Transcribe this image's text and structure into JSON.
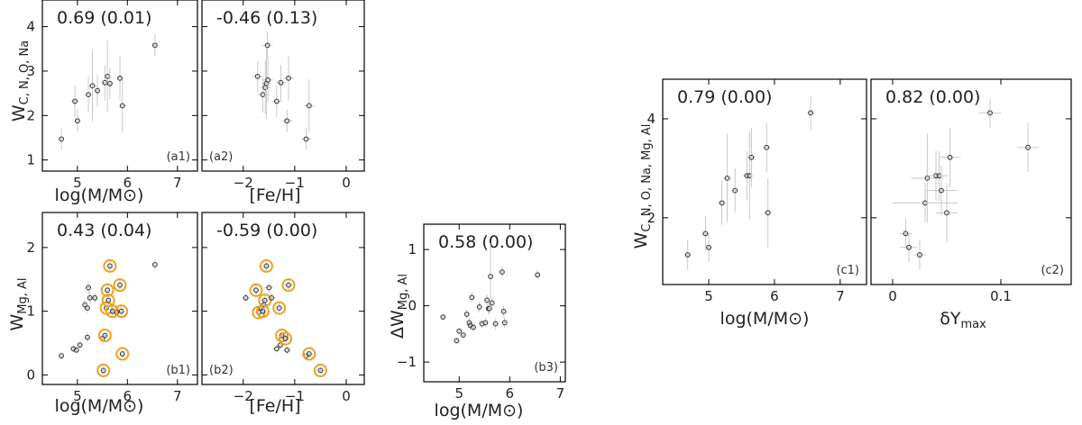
{
  "chart_data": [
    {
      "id": "a1",
      "type": "scatter",
      "xlim": [
        4.3,
        7.4
      ],
      "ylim": [
        0.75,
        4.6
      ],
      "xticks": [
        5,
        6,
        7
      ],
      "yticks": [
        1,
        2,
        3,
        4
      ],
      "annotation": "0.69  (0.01)",
      "panel_label": "(a1)",
      "xlabel": "log(M/M⊙)",
      "ylabel": "WC, N, O, Na",
      "points": [
        {
          "x": 4.68,
          "y": 1.47,
          "ex": 0.05,
          "ey": 0.25
        },
        {
          "x": 4.95,
          "y": 2.32,
          "ex": 0.08,
          "ey": 0.35
        },
        {
          "x": 5.0,
          "y": 1.88,
          "ex": 0.06,
          "ey": 0.25
        },
        {
          "x": 5.22,
          "y": 2.47,
          "ex": 0.06,
          "ey": 0.4
        },
        {
          "x": 5.3,
          "y": 2.67,
          "ex": 0.08,
          "ey": 0.8
        },
        {
          "x": 5.4,
          "y": 2.56,
          "ex": 0.06,
          "ey": 0.35
        },
        {
          "x": 5.55,
          "y": 2.74,
          "ex": 0.07,
          "ey": 0.4
        },
        {
          "x": 5.6,
          "y": 2.88,
          "ex": 0.06,
          "ey": 0.8
        },
        {
          "x": 5.65,
          "y": 2.72,
          "ex": 0.06,
          "ey": 0.35
        },
        {
          "x": 5.85,
          "y": 2.84,
          "ex": 0.06,
          "ey": 0.5
        },
        {
          "x": 5.9,
          "y": 2.22,
          "ex": 0.07,
          "ey": 0.6
        },
        {
          "x": 6.55,
          "y": 3.58,
          "ex": 0.05,
          "ey": 0.25
        }
      ]
    },
    {
      "id": "a2",
      "type": "scatter",
      "xlim": [
        -2.8,
        0.35
      ],
      "ylim": [
        0.75,
        4.6
      ],
      "xticks": [
        -2,
        -1,
        0
      ],
      "yticks": [
        1,
        2,
        3,
        4
      ],
      "annotation": "-0.46  (0.13)",
      "panel_label": "(a2)",
      "xlabel": "[Fe/H]",
      "ylabel": "",
      "points": [
        {
          "x": -1.72,
          "y": 2.88,
          "ex": 0.1,
          "ey": 0.35
        },
        {
          "x": -1.62,
          "y": 2.47,
          "ex": 0.1,
          "ey": 0.4
        },
        {
          "x": -1.57,
          "y": 2.63,
          "ex": 0.1,
          "ey": 0.6
        },
        {
          "x": -1.55,
          "y": 2.72,
          "ex": 0.1,
          "ey": 0.8
        },
        {
          "x": -1.53,
          "y": 3.58,
          "ex": 0.1,
          "ey": 0.3
        },
        {
          "x": -1.52,
          "y": 2.8,
          "ex": 0.1,
          "ey": 0.5
        },
        {
          "x": -1.35,
          "y": 2.32,
          "ex": 0.1,
          "ey": 0.35
        },
        {
          "x": -1.27,
          "y": 2.74,
          "ex": 0.1,
          "ey": 0.4
        },
        {
          "x": -1.15,
          "y": 1.88,
          "ex": 0.1,
          "ey": 0.25
        },
        {
          "x": -1.12,
          "y": 2.84,
          "ex": 0.1,
          "ey": 0.5
        },
        {
          "x": -0.78,
          "y": 1.47,
          "ex": 0.1,
          "ey": 0.25
        },
        {
          "x": -0.72,
          "y": 2.22,
          "ex": 0.1,
          "ey": 0.6
        }
      ]
    },
    {
      "id": "b1",
      "type": "scatter",
      "xlim": [
        4.3,
        7.4
      ],
      "ylim": [
        -0.15,
        2.55
      ],
      "xticks": [
        5,
        6,
        7
      ],
      "yticks": [
        0,
        1,
        2
      ],
      "annotation": "0.43  (0.04)",
      "panel_label": "(b1)",
      "xlabel": "log(M/M⊙)",
      "ylabel": "WMg, Al",
      "highlight_color": "#f0a020",
      "points": [
        {
          "x": 4.68,
          "y": 0.3,
          "ex": 0.05,
          "ey": 0.05
        },
        {
          "x": 4.92,
          "y": 0.41,
          "ex": 0.06,
          "ey": 0.05
        },
        {
          "x": 4.98,
          "y": 0.39,
          "ex": 0.05,
          "ey": 0.05
        },
        {
          "x": 5.05,
          "y": 0.47,
          "ex": 0.05,
          "ey": 0.05
        },
        {
          "x": 5.15,
          "y": 1.1,
          "ex": 0.05,
          "ey": 0.08
        },
        {
          "x": 5.2,
          "y": 1.05,
          "ex": 0.05,
          "ey": 0.08
        },
        {
          "x": 5.2,
          "y": 0.59,
          "ex": 0.05,
          "ey": 0.08
        },
        {
          "x": 5.22,
          "y": 1.37,
          "ex": 0.05,
          "ey": 0.1
        },
        {
          "x": 5.25,
          "y": 1.21,
          "ex": 0.05,
          "ey": 0.1
        },
        {
          "x": 5.35,
          "y": 1.21,
          "ex": 0.05,
          "ey": 0.08
        },
        {
          "x": 5.5,
          "y": 0.57,
          "ex": 0.05,
          "ey": 0.05
        },
        {
          "x": 5.52,
          "y": 0.07,
          "ex": 0.05,
          "ey": 0.05,
          "hl": true
        },
        {
          "x": 5.55,
          "y": 0.62,
          "ex": 0.05,
          "ey": 0.05,
          "hl": true
        },
        {
          "x": 5.58,
          "y": 1.05,
          "ex": 0.05,
          "ey": 0.08,
          "hl": true
        },
        {
          "x": 5.6,
          "y": 1.33,
          "ex": 0.05,
          "ey": 0.08,
          "hl": true
        },
        {
          "x": 5.62,
          "y": 1.17,
          "ex": 0.05,
          "ey": 0.08,
          "hl": true
        },
        {
          "x": 5.65,
          "y": 1.71,
          "ex": 0.05,
          "ey": 0.1,
          "hl": true
        },
        {
          "x": 5.7,
          "y": 1.0,
          "ex": 0.05,
          "ey": 0.08,
          "hl": true
        },
        {
          "x": 5.78,
          "y": 0.98,
          "ex": 0.05,
          "ey": 0.08
        },
        {
          "x": 5.85,
          "y": 1.41,
          "ex": 0.05,
          "ey": 0.1,
          "hl": true
        },
        {
          "x": 5.88,
          "y": 1.0,
          "ex": 0.05,
          "ey": 0.08,
          "hl": true
        },
        {
          "x": 5.9,
          "y": 0.33,
          "ex": 0.05,
          "ey": 0.05,
          "hl": true
        },
        {
          "x": 6.55,
          "y": 1.73,
          "ex": 0.05,
          "ey": 0.08
        }
      ]
    },
    {
      "id": "b2",
      "type": "scatter",
      "xlim": [
        -2.8,
        0.35
      ],
      "ylim": [
        -0.15,
        2.55
      ],
      "xticks": [
        -2,
        -1,
        0
      ],
      "yticks": [
        0,
        1,
        2
      ],
      "annotation": "-0.59  (0.00)",
      "panel_label": "(b2)",
      "xlabel": "[Fe/H]",
      "ylabel": "",
      "highlight_color": "#f0a020",
      "points": [
        {
          "x": -1.95,
          "y": 1.21,
          "ex": 0.08,
          "ey": 0.06
        },
        {
          "x": -1.75,
          "y": 1.33,
          "ex": 0.08,
          "ey": 0.08,
          "hl": true
        },
        {
          "x": -1.7,
          "y": 0.98,
          "ex": 0.08,
          "ey": 0.08,
          "hl": true
        },
        {
          "x": -1.65,
          "y": 1.05,
          "ex": 0.08,
          "ey": 0.08
        },
        {
          "x": -1.62,
          "y": 1.0,
          "ex": 0.08,
          "ey": 0.08,
          "hl": true
        },
        {
          "x": -1.6,
          "y": 1.1,
          "ex": 0.08,
          "ey": 0.08
        },
        {
          "x": -1.58,
          "y": 1.17,
          "ex": 0.08,
          "ey": 0.08,
          "hl": true
        },
        {
          "x": -1.55,
          "y": 1.71,
          "ex": 0.08,
          "ey": 0.1,
          "hl": true
        },
        {
          "x": -1.5,
          "y": 1.37,
          "ex": 0.08,
          "ey": 0.08
        },
        {
          "x": -1.45,
          "y": 1.21,
          "ex": 0.08,
          "ey": 0.08
        },
        {
          "x": -1.35,
          "y": 0.41,
          "ex": 0.08,
          "ey": 0.06
        },
        {
          "x": -1.3,
          "y": 1.05,
          "ex": 0.08,
          "ey": 0.08,
          "hl": true
        },
        {
          "x": -1.28,
          "y": 0.47,
          "ex": 0.08,
          "ey": 0.06
        },
        {
          "x": -1.25,
          "y": 0.62,
          "ex": 0.08,
          "ey": 0.06,
          "hl": true
        },
        {
          "x": -1.18,
          "y": 0.57,
          "ex": 0.08,
          "ey": 0.06,
          "hl": true
        },
        {
          "x": -1.15,
          "y": 0.39,
          "ex": 0.08,
          "ey": 0.06
        },
        {
          "x": -1.12,
          "y": 1.41,
          "ex": 0.08,
          "ey": 0.08,
          "hl": true
        },
        {
          "x": -0.78,
          "y": 0.3,
          "ex": 0.08,
          "ey": 0.05
        },
        {
          "x": -0.72,
          "y": 0.33,
          "ex": 0.08,
          "ey": 0.05,
          "hl": true
        },
        {
          "x": -0.5,
          "y": 0.07,
          "ex": 0.08,
          "ey": 0.05,
          "hl": true
        }
      ]
    },
    {
      "id": "b3",
      "type": "scatter",
      "xlim": [
        4.3,
        7.1
      ],
      "ylim": [
        -1.35,
        1.45
      ],
      "xticks": [
        5,
        6,
        7
      ],
      "yticks": [
        -1,
        0,
        1
      ],
      "annotation": "0.58  (0.00)",
      "panel_label": "(b3)",
      "xlabel": "log(M/M⊙)",
      "ylabel": "ΔWMg, Al",
      "points": [
        {
          "x": 4.68,
          "y": -0.2,
          "ex": 0.05,
          "ey": 0.05
        },
        {
          "x": 4.95,
          "y": -0.62,
          "ex": 0.05,
          "ey": 0.05
        },
        {
          "x": 5.0,
          "y": -0.45,
          "ex": 0.05,
          "ey": 0.05
        },
        {
          "x": 5.08,
          "y": -0.52,
          "ex": 0.05,
          "ey": 0.05
        },
        {
          "x": 5.15,
          "y": -0.15,
          "ex": 0.05,
          "ey": 0.08
        },
        {
          "x": 5.2,
          "y": -0.3,
          "ex": 0.05,
          "ey": 0.08
        },
        {
          "x": 5.22,
          "y": -0.35,
          "ex": 0.05,
          "ey": 0.08
        },
        {
          "x": 5.25,
          "y": 0.15,
          "ex": 0.05,
          "ey": 0.1
        },
        {
          "x": 5.28,
          "y": -0.38,
          "ex": 0.05,
          "ey": 0.08
        },
        {
          "x": 5.4,
          "y": -0.02,
          "ex": 0.05,
          "ey": 0.1
        },
        {
          "x": 5.45,
          "y": -0.32,
          "ex": 0.05,
          "ey": 0.08
        },
        {
          "x": 5.52,
          "y": -0.3,
          "ex": 0.05,
          "ey": 0.08
        },
        {
          "x": 5.55,
          "y": 0.1,
          "ex": 0.05,
          "ey": 0.1
        },
        {
          "x": 5.58,
          "y": -0.05,
          "ex": 0.05,
          "ey": 0.1
        },
        {
          "x": 5.6,
          "y": -0.05,
          "ex": 0.05,
          "ey": 0.1
        },
        {
          "x": 5.62,
          "y": 0.52,
          "ex": 0.05,
          "ey": 0.6
        },
        {
          "x": 5.65,
          "y": 0.05,
          "ex": 0.05,
          "ey": 0.1
        },
        {
          "x": 5.72,
          "y": -0.32,
          "ex": 0.05,
          "ey": 0.1
        },
        {
          "x": 5.85,
          "y": 0.6,
          "ex": 0.05,
          "ey": 0.1
        },
        {
          "x": 5.88,
          "y": -0.1,
          "ex": 0.05,
          "ey": 0.1
        },
        {
          "x": 5.9,
          "y": -0.3,
          "ex": 0.05,
          "ey": 0.1
        },
        {
          "x": 6.55,
          "y": 0.55,
          "ex": 0.05,
          "ey": 0.08
        }
      ]
    },
    {
      "id": "c1",
      "type": "scatter",
      "xlim": [
        4.3,
        7.4
      ],
      "ylim": [
        0.65,
        4.8
      ],
      "xticks": [
        5,
        6,
        7
      ],
      "yticks": [
        2,
        4
      ],
      "annotation": "0.79  (0.00)",
      "panel_label": "(c1)",
      "xlabel": "log(M/M⊙)",
      "ylabel": "WC, N, O, Na, Mg, Al",
      "points": [
        {
          "x": 4.68,
          "y": 1.25,
          "ex": 0.05,
          "ey": 0.3
        },
        {
          "x": 4.95,
          "y": 1.68,
          "ex": 0.06,
          "ey": 0.35
        },
        {
          "x": 5.0,
          "y": 1.4,
          "ex": 0.06,
          "ey": 0.3
        },
        {
          "x": 5.2,
          "y": 2.3,
          "ex": 0.06,
          "ey": 0.45
        },
        {
          "x": 5.28,
          "y": 2.8,
          "ex": 0.06,
          "ey": 0.9
        },
        {
          "x": 5.4,
          "y": 2.55,
          "ex": 0.06,
          "ey": 0.45
        },
        {
          "x": 5.58,
          "y": 2.85,
          "ex": 0.06,
          "ey": 0.5
        },
        {
          "x": 5.62,
          "y": 2.85,
          "ex": 0.06,
          "ey": 0.9
        },
        {
          "x": 5.65,
          "y": 3.22,
          "ex": 0.06,
          "ey": 0.6
        },
        {
          "x": 5.88,
          "y": 3.42,
          "ex": 0.06,
          "ey": 0.5
        },
        {
          "x": 5.9,
          "y": 2.1,
          "ex": 0.06,
          "ey": 0.7
        },
        {
          "x": 6.55,
          "y": 4.12,
          "ex": 0.05,
          "ey": 0.35
        }
      ]
    },
    {
      "id": "c2",
      "type": "scatter",
      "xlim": [
        -0.02,
        0.165
      ],
      "ylim": [
        0.65,
        4.8
      ],
      "xticks": [
        0.0,
        0.1
      ],
      "yticks": [
        2,
        4
      ],
      "annotation": "0.82  (0.00)",
      "panel_label": "(c2)",
      "xlabel": "δYmax",
      "ylabel": "",
      "points": [
        {
          "x": 0.012,
          "y": 1.68,
          "ex": 0.006,
          "ey": 0.3
        },
        {
          "x": 0.015,
          "y": 1.4,
          "ex": 0.008,
          "ey": 0.3
        },
        {
          "x": 0.025,
          "y": 1.25,
          "ex": 0.006,
          "ey": 0.3
        },
        {
          "x": 0.03,
          "y": 2.3,
          "ex": 0.03,
          "ey": 0.4
        },
        {
          "x": 0.032,
          "y": 2.8,
          "ex": 0.015,
          "ey": 0.9
        },
        {
          "x": 0.04,
          "y": 2.85,
          "ex": 0.008,
          "ey": 0.5
        },
        {
          "x": 0.043,
          "y": 2.85,
          "ex": 0.008,
          "ey": 0.5
        },
        {
          "x": 0.045,
          "y": 2.55,
          "ex": 0.015,
          "ey": 0.5
        },
        {
          "x": 0.05,
          "y": 2.1,
          "ex": 0.01,
          "ey": 0.6
        },
        {
          "x": 0.053,
          "y": 3.22,
          "ex": 0.01,
          "ey": 0.6
        },
        {
          "x": 0.09,
          "y": 4.12,
          "ex": 0.01,
          "ey": 0.3
        },
        {
          "x": 0.125,
          "y": 3.42,
          "ex": 0.01,
          "ey": 0.5
        }
      ]
    }
  ]
}
